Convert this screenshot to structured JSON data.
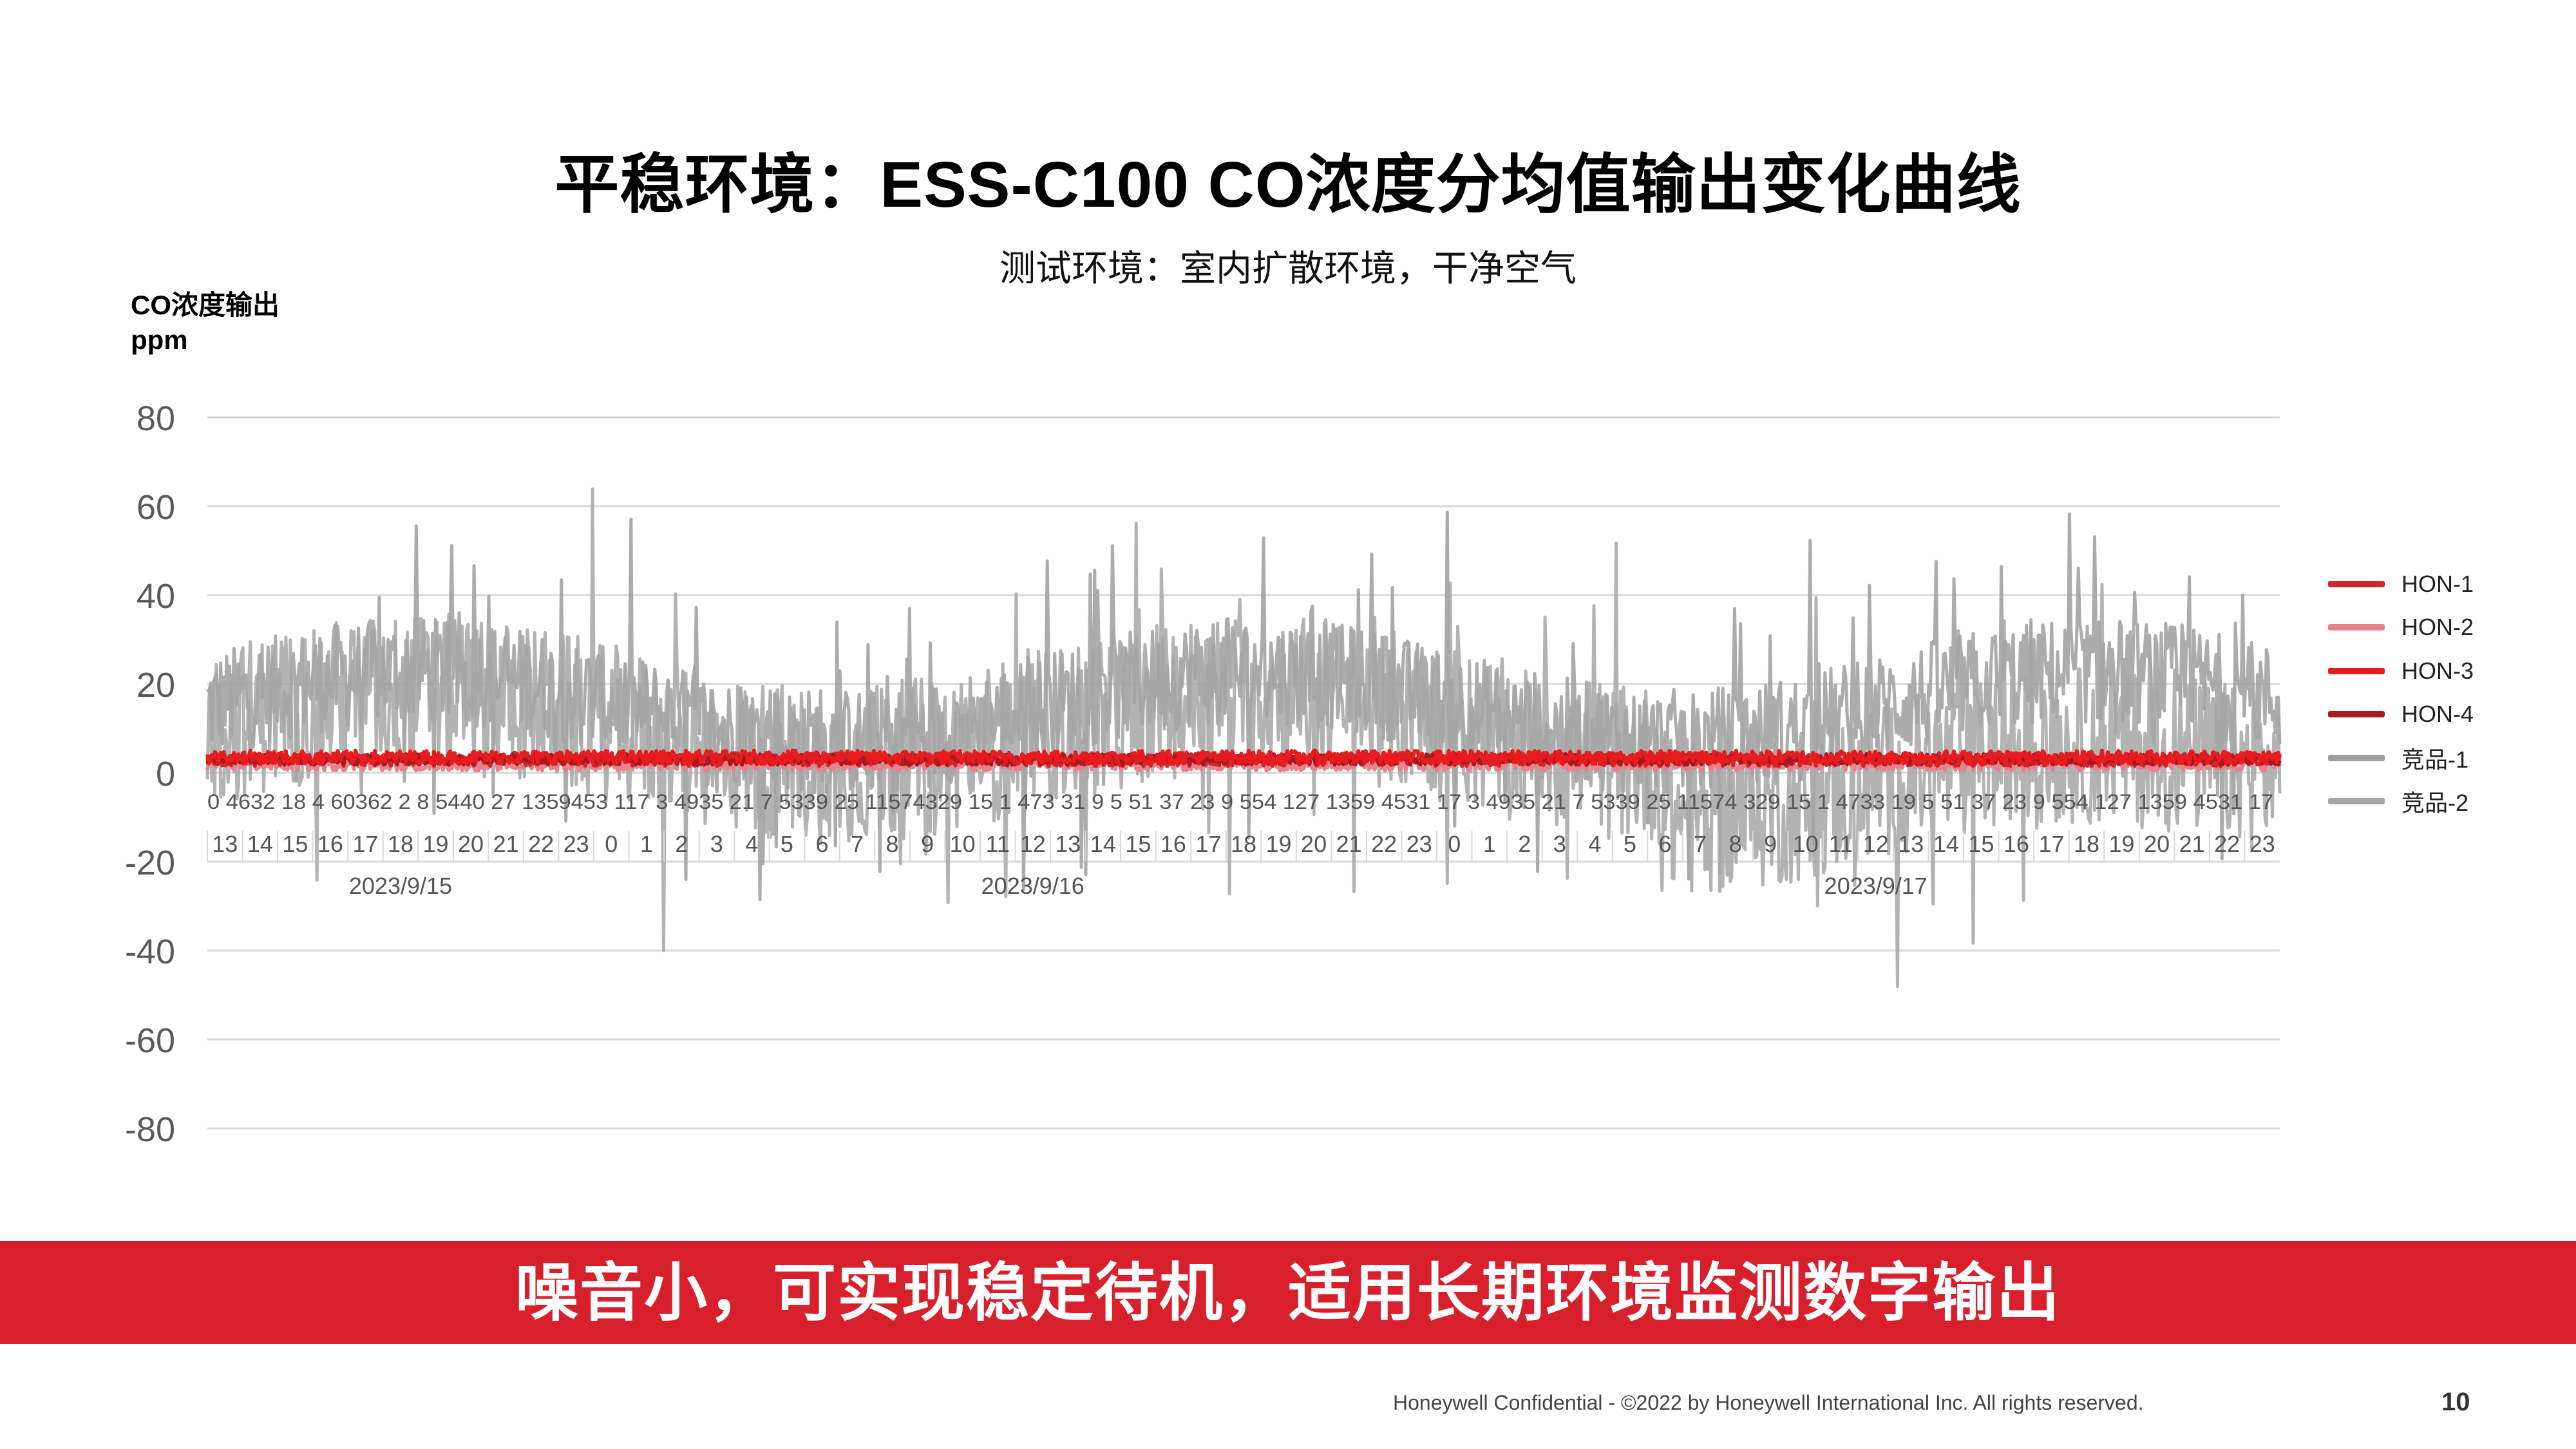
{
  "slide": {
    "title": "平稳环境：ESS-C100 CO浓度分均值输出变化曲线",
    "subtitle": "测试环境：室内扩散环境，干净空气",
    "banner": "噪音小，可实现稳定待机，适用长期环境监测数字输出",
    "footer": "Honeywell Confidential - ©2022 by Honeywell International Inc. All rights reserved.",
    "page_number": "10"
  },
  "chart_data": {
    "type": "line",
    "ylabel_line1": "CO浓度输出",
    "ylabel_line2": "ppm",
    "ylim": [
      -80,
      80
    ],
    "yticks": [
      80,
      60,
      40,
      20,
      0,
      -20,
      -40,
      -60,
      -80
    ],
    "grid": true,
    "legend_position": "right",
    "x_hour_labels": [
      "13",
      "14",
      "15",
      "16",
      "17",
      "18",
      "19",
      "20",
      "21",
      "22",
      "23",
      "0",
      "1",
      "2",
      "3",
      "4",
      "5",
      "6",
      "7",
      "8",
      "9",
      "10",
      "11",
      "12",
      "13",
      "14",
      "15",
      "16",
      "17",
      "18",
      "19",
      "20",
      "21",
      "22",
      "23",
      "0",
      "1",
      "2",
      "3",
      "4",
      "5",
      "6",
      "7",
      "8",
      "9",
      "10",
      "11",
      "12",
      "13",
      "14",
      "15",
      "16",
      "17",
      "18",
      "19",
      "20",
      "21",
      "22",
      "23"
    ],
    "x_date_labels": [
      {
        "label": "2023/9/15",
        "hour_index": 5
      },
      {
        "label": "2023/9/16",
        "hour_index": 23
      },
      {
        "label": "2023/9/17",
        "hour_index": 47
      }
    ],
    "x_minute_strip": "0 4632 18 4 60362 2 8 5440 27 1359453 117 3 4935 21 7 5339 25 11574329 15 1 473 31 9 5 51 37 23 9 554 127 1359 4531 17 3 4935 21 7 5339 25 11574 329 15 1 4733 19 5 51 37 23 9 554 127 1359 4531 17",
    "series": [
      {
        "name": "HON-1",
        "color": "#d2262f",
        "baseline": 3,
        "noise": 1.5
      },
      {
        "name": "HON-2",
        "color": "#e8828a",
        "baseline": 2,
        "noise": 1.5
      },
      {
        "name": "HON-3",
        "color": "#e81c1c",
        "baseline": 3.5,
        "noise": 1.5
      },
      {
        "name": "HON-4",
        "color": "#a8191f",
        "baseline": 3,
        "noise": 1.2
      },
      {
        "name": "竞品-1",
        "color": "#9e9e9e",
        "baseline": 15,
        "noise": 12
      },
      {
        "name": "竞品-2",
        "color": "#a6a6a6",
        "baseline": 10,
        "noise": 18
      }
    ]
  }
}
